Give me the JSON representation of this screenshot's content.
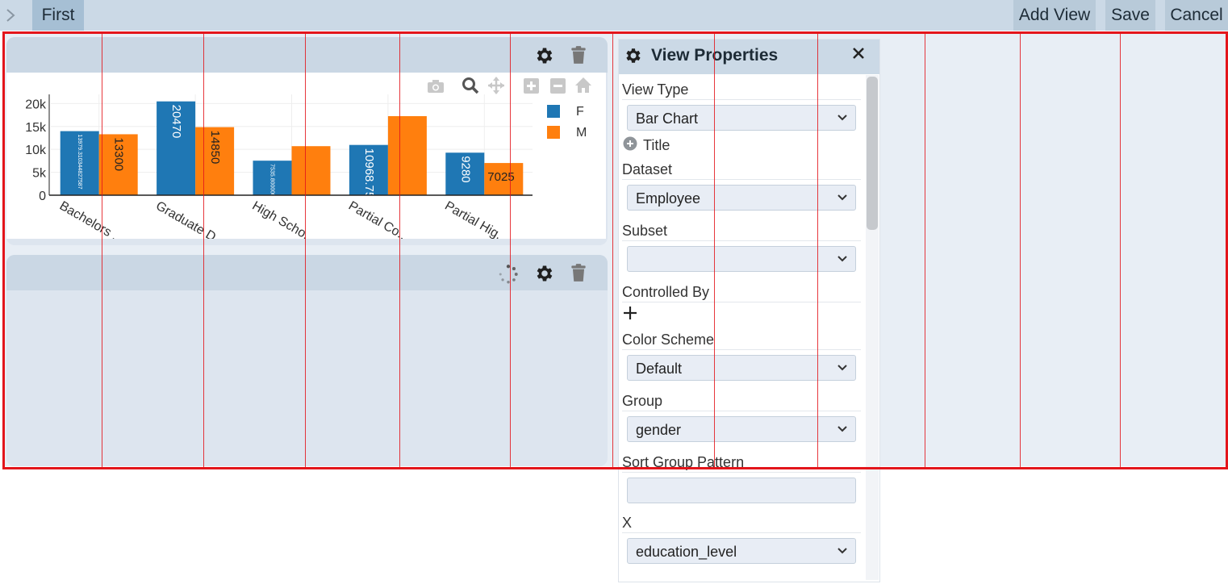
{
  "toolbar": {
    "tab_label": "First",
    "add_view_label": "Add View",
    "save_label": "Save",
    "cancel_label": "Cancel"
  },
  "chart_panel": {
    "modebar_icons": [
      "camera-icon",
      "zoom-icon",
      "pan-icon",
      "zoom-in-icon",
      "zoom-out-icon",
      "home-icon"
    ]
  },
  "chart_data": {
    "type": "bar",
    "categories": [
      "Bachelors ...",
      "Graduate D...",
      "High Scho...",
      "Partial Co...",
      "Partial Hig..."
    ],
    "series": [
      {
        "name": "F",
        "color": "#1f77b4",
        "values": [
          13979.31,
          20470,
          7535.8,
          10968.75,
          9280
        ],
        "labels": [
          "13979.310344827587",
          "20470",
          "7535.80000000000",
          "10968.75",
          "9280"
        ]
      },
      {
        "name": "M",
        "color": "#ff7f0e",
        "values": [
          13300,
          14850,
          10700,
          17250,
          7025
        ],
        "labels": [
          "13300",
          "14850",
          "",
          "",
          "7025"
        ]
      }
    ],
    "y_ticks": [
      "0",
      "5k",
      "10k",
      "15k",
      "20k"
    ],
    "ylim": [
      0,
      22000
    ],
    "legend_position": "top-right"
  },
  "properties": {
    "title": "View Properties",
    "view_type_label": "View Type",
    "view_type_value": "Bar Chart",
    "title_label": "Title",
    "dataset_label": "Dataset",
    "dataset_value": "Employee",
    "subset_label": "Subset",
    "subset_value": "",
    "controlled_by_label": "Controlled By",
    "color_scheme_label": "Color Scheme",
    "color_scheme_value": "Default",
    "group_label": "Group",
    "group_value": "gender",
    "sort_group_label": "Sort Group Pattern",
    "sort_group_value": "",
    "x_label": "X",
    "x_value": "education_level"
  }
}
